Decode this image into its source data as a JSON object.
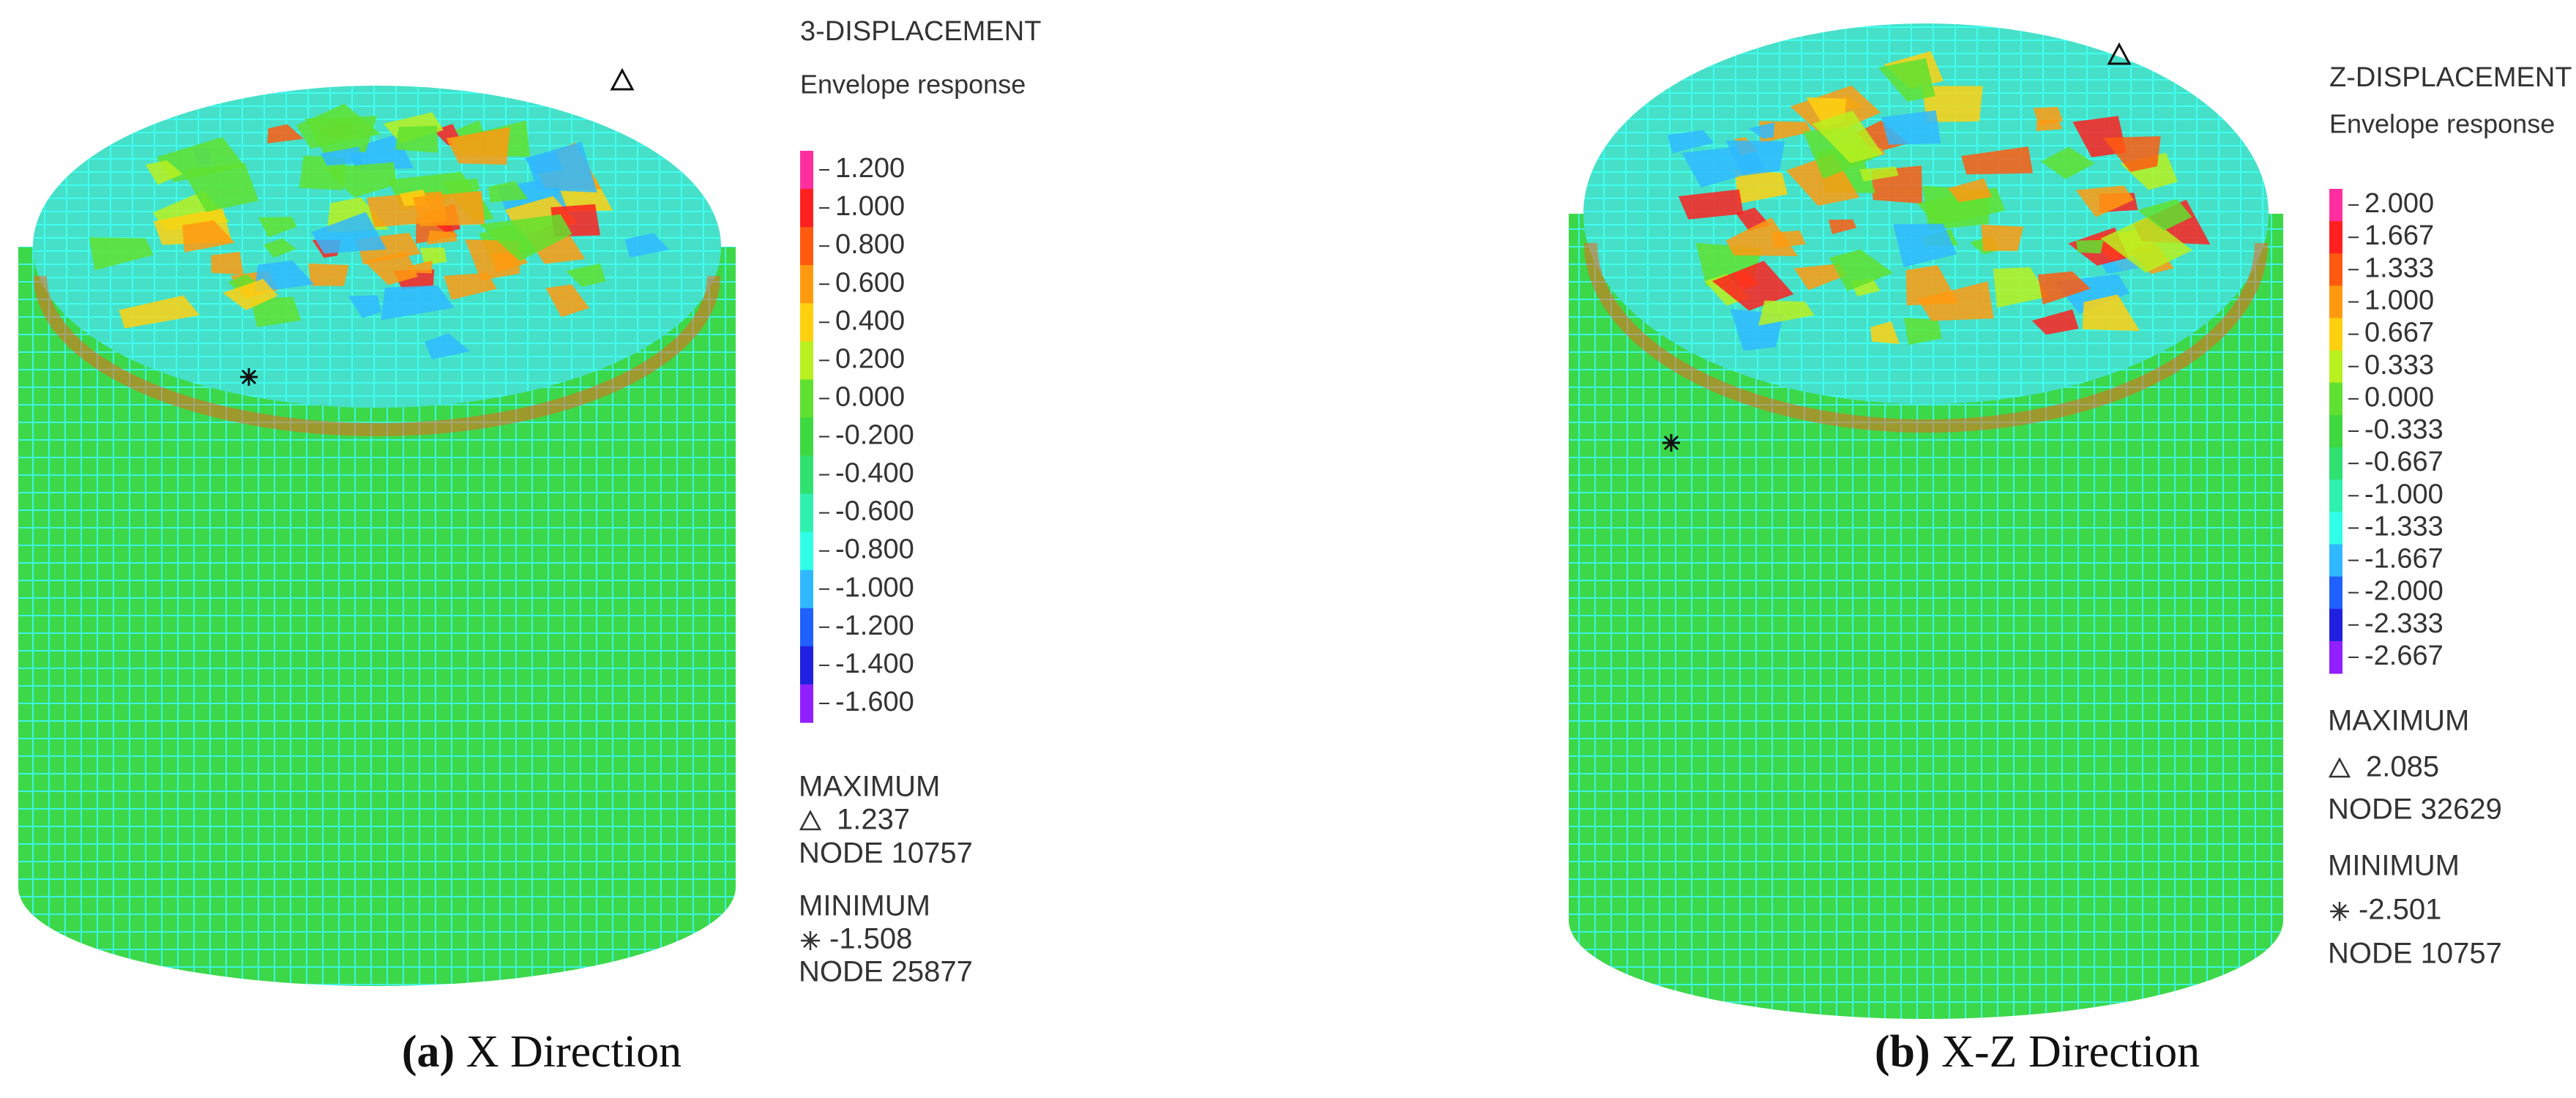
{
  "panels": [
    {
      "title": "3-DISPLACEMENT",
      "subtitle": "Envelope response",
      "legend": {
        "labels": [
          "1.200",
          "1.000",
          "0.800",
          "0.600",
          "0.400",
          "0.200",
          "0.000",
          "-0.200",
          "-0.400",
          "-0.600",
          "-0.800",
          "-1.000",
          "-1.200",
          "-1.400",
          "-1.600"
        ],
        "colors": [
          "#ff2fa0",
          "#ff2020",
          "#ff5a10",
          "#ff9a10",
          "#ffd010",
          "#b8f020",
          "#60e030",
          "#3ed840",
          "#30e070",
          "#30f0b0",
          "#30ffe8",
          "#30b8ff",
          "#2060ff",
          "#2020e0",
          "#9020ff"
        ]
      },
      "maximum": {
        "heading": "MAXIMUM",
        "value": "1.237",
        "node": "NODE 10757"
      },
      "minimum": {
        "heading": "MINIMUM",
        "value": "-1.508",
        "node": "NODE 25877"
      },
      "caption": {
        "label": "(a)",
        "text": "X Direction"
      }
    },
    {
      "title": "Z-DISPLACEMENT",
      "subtitle": "Envelope response",
      "legend": {
        "labels": [
          "2.000",
          "1.667",
          "1.333",
          "1.000",
          "0.667",
          "0.333",
          "0.000",
          "-0.333",
          "-0.667",
          "-1.000",
          "-1.333",
          "-1.667",
          "-2.000",
          "-2.333",
          "-2.667"
        ],
        "colors": [
          "#ff2fa0",
          "#ff2020",
          "#ff5a10",
          "#ff9a10",
          "#ffd010",
          "#b8f020",
          "#60e030",
          "#3ed840",
          "#30e070",
          "#30f0b0",
          "#30ffe8",
          "#30b8ff",
          "#2060ff",
          "#2020e0",
          "#9020ff"
        ]
      },
      "maximum": {
        "heading": "MAXIMUM",
        "value": "2.085",
        "node": "NODE 32629"
      },
      "minimum": {
        "heading": "MINIMUM",
        "value": "-2.501",
        "node": "NODE 10757"
      },
      "caption": {
        "label": "(b)",
        "text": "X-Z Direction"
      }
    }
  ]
}
